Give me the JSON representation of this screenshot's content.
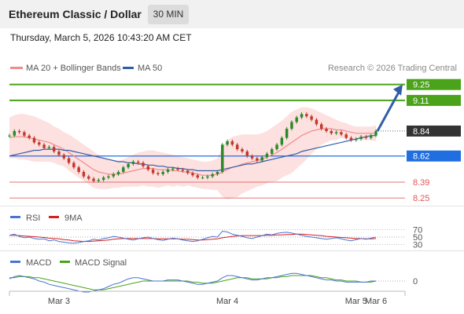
{
  "header": {
    "title": "Ethereum Classic / Dollar",
    "interval": "30 MIN"
  },
  "timestamp": "Thursday, March 5, 2026 10:43:20 AM CET",
  "colors": {
    "ma20": "#f28b8b",
    "ma50": "#2f5ea8",
    "bollinger_fill": "#fde0e0",
    "candle_up": "#2a8a2a",
    "candle_down": "#c0392b",
    "target": "#4aa31a",
    "current": "#333333",
    "pivot": "#1f6fe0",
    "support": "#e05555",
    "arrow": "#2f5ea8",
    "rsi": "#4a74d0",
    "rsi_ma": "#d42020",
    "macd": "#4a74d0",
    "macd_signal": "#4aa31a"
  },
  "chart_data": [
    {
      "type": "candlestick",
      "title": "Ethereum Classic / Dollar",
      "legend": {
        "placement": "top-left",
        "entries": [
          "MA 20 + Bollinger Bands",
          "MA 50"
        ]
      },
      "credit": "Research © 2026 Trading Central",
      "ylim": [
        8.21,
        9.31
      ],
      "x_ticks": [
        "Mar 3",
        "Mar 4",
        "Mar 5",
        "Mar 6"
      ],
      "levels": [
        {
          "label": "9.25",
          "value": 9.25,
          "kind": "target"
        },
        {
          "label": "9.11",
          "value": 9.11,
          "kind": "target"
        },
        {
          "label": "8.84",
          "value": 8.84,
          "kind": "current"
        },
        {
          "label": "8.62",
          "value": 8.62,
          "kind": "pivot"
        },
        {
          "label": "8.39",
          "value": 8.39,
          "kind": "support"
        },
        {
          "label": "8.25",
          "value": 8.25,
          "kind": "support"
        }
      ],
      "closes": [
        8.8,
        8.84,
        8.83,
        8.8,
        8.78,
        8.74,
        8.72,
        8.69,
        8.7,
        8.66,
        8.63,
        8.6,
        8.56,
        8.52,
        8.48,
        8.44,
        8.42,
        8.4,
        8.41,
        8.43,
        8.44,
        8.46,
        8.48,
        8.52,
        8.55,
        8.57,
        8.56,
        8.53,
        8.5,
        8.47,
        8.46,
        8.48,
        8.5,
        8.51,
        8.5,
        8.49,
        8.47,
        8.45,
        8.43,
        8.43,
        8.44,
        8.46,
        8.48,
        8.72,
        8.75,
        8.72,
        8.68,
        8.66,
        8.62,
        8.6,
        8.58,
        8.61,
        8.64,
        8.68,
        8.72,
        8.78,
        8.86,
        8.92,
        8.96,
        8.99,
        8.97,
        8.94,
        8.9,
        8.86,
        8.84,
        8.82,
        8.83,
        8.81,
        8.78,
        8.76,
        8.77,
        8.79,
        8.78,
        8.8,
        8.84
      ],
      "ma20": [
        8.78,
        8.79,
        8.79,
        8.79,
        8.78,
        8.77,
        8.76,
        8.75,
        8.74,
        8.72,
        8.7,
        8.68,
        8.65,
        8.62,
        8.59,
        8.56,
        8.53,
        8.5,
        8.48,
        8.47,
        8.46,
        8.46,
        8.46,
        8.47,
        8.48,
        8.49,
        8.5,
        8.51,
        8.51,
        8.51,
        8.5,
        8.5,
        8.5,
        8.49,
        8.49,
        8.48,
        8.48,
        8.47,
        8.46,
        8.45,
        8.45,
        8.45,
        8.46,
        8.48,
        8.5,
        8.52,
        8.53,
        8.55,
        8.56,
        8.57,
        8.58,
        8.59,
        8.61,
        8.63,
        8.65,
        8.68,
        8.71,
        8.74,
        8.77,
        8.8,
        8.82,
        8.84,
        8.85,
        8.86,
        8.86,
        8.86,
        8.85,
        8.85,
        8.84,
        8.83,
        8.82,
        8.82,
        8.82,
        8.82,
        8.82
      ],
      "ma50": [
        8.62,
        8.63,
        8.64,
        8.65,
        8.66,
        8.67,
        8.67,
        8.68,
        8.68,
        8.68,
        8.68,
        8.67,
        8.67,
        8.66,
        8.65,
        8.64,
        8.63,
        8.62,
        8.61,
        8.6,
        8.59,
        8.58,
        8.57,
        8.57,
        8.56,
        8.56,
        8.55,
        8.55,
        8.54,
        8.54,
        8.53,
        8.53,
        8.52,
        8.52,
        8.51,
        8.51,
        8.5,
        8.5,
        8.49,
        8.49,
        8.49,
        8.49,
        8.49,
        8.5,
        8.51,
        8.52,
        8.53,
        8.54,
        8.55,
        8.55,
        8.56,
        8.57,
        8.58,
        8.59,
        8.6,
        8.61,
        8.62,
        8.63,
        8.64,
        8.66,
        8.67,
        8.68,
        8.69,
        8.7,
        8.71,
        8.72,
        8.73,
        8.74,
        8.75,
        8.76,
        8.77,
        8.78,
        8.79,
        8.8,
        8.8
      ],
      "bb_upper": [
        8.96,
        8.98,
        8.99,
        8.99,
        8.98,
        8.97,
        8.95,
        8.93,
        8.91,
        8.88,
        8.86,
        8.83,
        8.81,
        8.78,
        8.75,
        8.72,
        8.69,
        8.66,
        8.63,
        8.61,
        8.59,
        8.58,
        8.58,
        8.59,
        8.61,
        8.63,
        8.65,
        8.66,
        8.67,
        8.67,
        8.66,
        8.65,
        8.64,
        8.63,
        8.62,
        8.61,
        8.6,
        8.59,
        8.58,
        8.57,
        8.57,
        8.58,
        8.6,
        8.7,
        8.76,
        8.79,
        8.8,
        8.81,
        8.81,
        8.81,
        8.81,
        8.82,
        8.84,
        8.87,
        8.9,
        8.93,
        8.97,
        9.01,
        9.03,
        9.05,
        9.05,
        9.04,
        9.02,
        9.0,
        8.98,
        8.96,
        8.94,
        8.92,
        8.91,
        8.89,
        8.88,
        8.88,
        8.88,
        8.88,
        8.89
      ],
      "bb_lower": [
        8.6,
        8.6,
        8.59,
        8.59,
        8.58,
        8.57,
        8.57,
        8.57,
        8.57,
        8.56,
        8.54,
        8.53,
        8.49,
        8.46,
        8.43,
        8.4,
        8.37,
        8.34,
        8.33,
        8.33,
        8.33,
        8.34,
        8.34,
        8.35,
        8.35,
        8.35,
        8.35,
        8.36,
        8.35,
        8.35,
        8.34,
        8.35,
        8.36,
        8.35,
        8.36,
        8.35,
        8.36,
        8.35,
        8.34,
        8.33,
        8.33,
        8.32,
        8.32,
        8.26,
        8.24,
        8.25,
        8.26,
        8.29,
        8.31,
        8.33,
        8.35,
        8.36,
        8.38,
        8.39,
        8.4,
        8.43,
        8.45,
        8.47,
        8.51,
        8.55,
        8.59,
        8.64,
        8.68,
        8.72,
        8.74,
        8.76,
        8.76,
        8.78,
        8.77,
        8.77,
        8.76,
        8.76,
        8.76,
        8.76,
        8.75
      ],
      "projection": {
        "from": 8.84,
        "to": 9.25
      }
    },
    {
      "type": "line",
      "legend": {
        "placement": "top-left",
        "entries": [
          "RSI",
          "9MA"
        ]
      },
      "y_ticks": [
        "70",
        "50",
        "30"
      ],
      "ylim": [
        20,
        80
      ],
      "rsi": [
        55,
        58,
        52,
        48,
        50,
        46,
        44,
        45,
        40,
        42,
        38,
        36,
        34,
        33,
        35,
        38,
        40,
        44,
        42,
        46,
        48,
        52,
        50,
        47,
        44,
        42,
        45,
        48,
        50,
        46,
        43,
        41,
        44,
        47,
        45,
        42,
        40,
        38,
        40,
        44,
        48,
        52,
        50,
        66,
        64,
        58,
        55,
        52,
        48,
        46,
        50,
        54,
        58,
        56,
        60,
        62,
        63,
        61,
        58,
        55,
        52,
        50,
        48,
        46,
        44,
        46,
        48,
        45,
        42,
        40,
        43,
        46,
        44,
        47,
        50
      ],
      "rsi_ma": [
        55,
        55,
        54,
        53,
        52,
        51,
        50,
        49,
        47,
        46,
        45,
        43,
        42,
        40,
        39,
        38,
        38,
        39,
        40,
        41,
        42,
        44,
        45,
        46,
        46,
        46,
        46,
        46,
        46,
        46,
        45,
        45,
        45,
        45,
        45,
        44,
        44,
        43,
        42,
        42,
        43,
        44,
        45,
        48,
        50,
        52,
        53,
        54,
        54,
        54,
        54,
        54,
        55,
        55,
        56,
        56,
        57,
        57,
        58,
        58,
        57,
        56,
        55,
        54,
        52,
        51,
        50,
        49,
        48,
        47,
        46,
        46,
        45,
        45,
        46
      ]
    },
    {
      "type": "line",
      "legend": {
        "placement": "top-left",
        "entries": [
          "MACD",
          "MACD Signal"
        ]
      },
      "y_ticks": [
        "0"
      ],
      "ylim": [
        -0.1,
        0.1
      ],
      "macd": [
        0.02,
        0.04,
        0.05,
        0.04,
        0.03,
        0.02,
        0.0,
        -0.01,
        -0.03,
        -0.04,
        -0.05,
        -0.06,
        -0.07,
        -0.08,
        -0.09,
        -0.1,
        -0.1,
        -0.09,
        -0.08,
        -0.07,
        -0.05,
        -0.03,
        -0.02,
        0.0,
        0.02,
        0.03,
        0.03,
        0.02,
        0.01,
        0.0,
        0.0,
        0.0,
        0.01,
        0.01,
        0.01,
        0.0,
        -0.01,
        -0.02,
        -0.03,
        -0.03,
        -0.02,
        -0.01,
        0.0,
        0.03,
        0.05,
        0.05,
        0.04,
        0.03,
        0.02,
        0.01,
        0.01,
        0.02,
        0.03,
        0.03,
        0.04,
        0.05,
        0.06,
        0.07,
        0.07,
        0.06,
        0.05,
        0.04,
        0.03,
        0.02,
        0.01,
        0.01,
        0.0,
        0.0,
        -0.01,
        -0.01,
        -0.01,
        -0.01,
        -0.01,
        0.0,
        0.0
      ],
      "signal": [
        0.03,
        0.03,
        0.04,
        0.04,
        0.04,
        0.03,
        0.03,
        0.02,
        0.01,
        0.0,
        -0.01,
        -0.02,
        -0.03,
        -0.04,
        -0.05,
        -0.06,
        -0.07,
        -0.08,
        -0.08,
        -0.08,
        -0.07,
        -0.06,
        -0.05,
        -0.04,
        -0.03,
        -0.02,
        -0.01,
        0.0,
        0.0,
        0.0,
        0.0,
        0.0,
        0.0,
        0.0,
        0.0,
        0.0,
        0.0,
        -0.01,
        -0.01,
        -0.02,
        -0.02,
        -0.02,
        -0.01,
        0.0,
        0.01,
        0.02,
        0.03,
        0.03,
        0.03,
        0.02,
        0.02,
        0.02,
        0.02,
        0.03,
        0.03,
        0.04,
        0.04,
        0.05,
        0.05,
        0.05,
        0.05,
        0.05,
        0.04,
        0.03,
        0.03,
        0.02,
        0.01,
        0.01,
        0.0,
        0.0,
        0.0,
        -0.01,
        -0.01,
        -0.01,
        0.0
      ]
    }
  ]
}
